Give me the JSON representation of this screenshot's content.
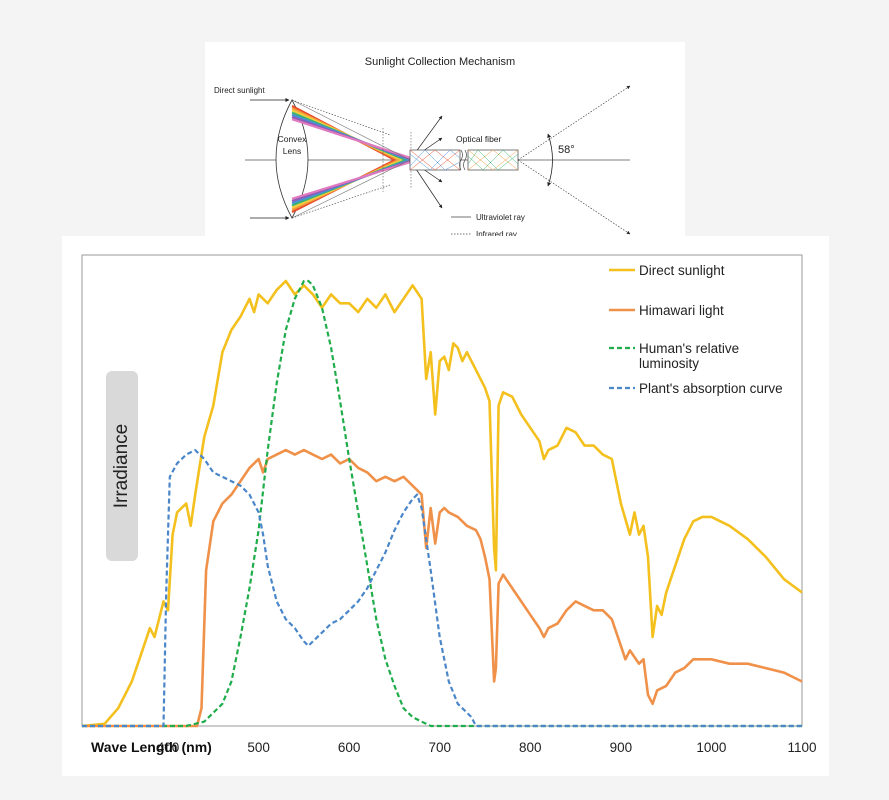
{
  "diagram": {
    "title": "Sunlight Collection Mechanism",
    "direct_sunlight": "Direct sunlight",
    "lens_line1": "Convex",
    "lens_line2": "Lens",
    "optical_fiber": "Optical fiber",
    "angle": "58°",
    "legend": [
      {
        "label": "Ultraviolet ray",
        "style": "solid"
      },
      {
        "label": "Infrared ray",
        "style": "dotted"
      }
    ],
    "spectrum_colors": [
      "#e84b2a",
      "#f39c3d",
      "#f4d03f",
      "#3cb371",
      "#4a90d9",
      "#8e5bb5",
      "#e07ac0"
    ]
  },
  "chart_data": {
    "type": "line",
    "xlabel": "Wave Length (nm)",
    "ylabel": "Irradiance",
    "xlim": [
      305,
      1100
    ],
    "ylim": [
      0,
      1
    ],
    "x_ticks": [
      400,
      500,
      600,
      700,
      800,
      900,
      1000,
      1100
    ],
    "grid": false,
    "legend_position": "top-right",
    "series": [
      {
        "name": "Direct sunlight",
        "color": "#f4c01e",
        "style": "solid",
        "points": [
          [
            300,
            0
          ],
          [
            330,
            0.005
          ],
          [
            345,
            0.04
          ],
          [
            360,
            0.1
          ],
          [
            370,
            0.16
          ],
          [
            380,
            0.22
          ],
          [
            385,
            0.2
          ],
          [
            390,
            0.24
          ],
          [
            395,
            0.28
          ],
          [
            400,
            0.26
          ],
          [
            405,
            0.43
          ],
          [
            410,
            0.48
          ],
          [
            420,
            0.5
          ],
          [
            425,
            0.45
          ],
          [
            430,
            0.52
          ],
          [
            440,
            0.65
          ],
          [
            450,
            0.72
          ],
          [
            460,
            0.84
          ],
          [
            470,
            0.89
          ],
          [
            480,
            0.92
          ],
          [
            490,
            0.96
          ],
          [
            495,
            0.93
          ],
          [
            500,
            0.97
          ],
          [
            510,
            0.95
          ],
          [
            520,
            0.98
          ],
          [
            530,
            1.0
          ],
          [
            540,
            0.97
          ],
          [
            550,
            0.99
          ],
          [
            560,
            0.97
          ],
          [
            570,
            0.94
          ],
          [
            580,
            0.97
          ],
          [
            590,
            0.95
          ],
          [
            600,
            0.95
          ],
          [
            610,
            0.93
          ],
          [
            620,
            0.96
          ],
          [
            630,
            0.94
          ],
          [
            640,
            0.97
          ],
          [
            650,
            0.93
          ],
          [
            660,
            0.96
          ],
          [
            670,
            0.99
          ],
          [
            680,
            0.96
          ],
          [
            685,
            0.78
          ],
          [
            690,
            0.84
          ],
          [
            695,
            0.7
          ],
          [
            700,
            0.82
          ],
          [
            705,
            0.83
          ],
          [
            710,
            0.8
          ],
          [
            715,
            0.86
          ],
          [
            720,
            0.85
          ],
          [
            725,
            0.82
          ],
          [
            730,
            0.84
          ],
          [
            735,
            0.82
          ],
          [
            740,
            0.8
          ],
          [
            745,
            0.78
          ],
          [
            750,
            0.76
          ],
          [
            755,
            0.73
          ],
          [
            760,
            0.4
          ],
          [
            762,
            0.35
          ],
          [
            765,
            0.72
          ],
          [
            770,
            0.75
          ],
          [
            780,
            0.74
          ],
          [
            790,
            0.7
          ],
          [
            800,
            0.67
          ],
          [
            810,
            0.64
          ],
          [
            815,
            0.6
          ],
          [
            820,
            0.62
          ],
          [
            830,
            0.63
          ],
          [
            840,
            0.67
          ],
          [
            850,
            0.66
          ],
          [
            860,
            0.63
          ],
          [
            870,
            0.63
          ],
          [
            880,
            0.61
          ],
          [
            890,
            0.6
          ],
          [
            900,
            0.5
          ],
          [
            910,
            0.43
          ],
          [
            915,
            0.48
          ],
          [
            920,
            0.43
          ],
          [
            925,
            0.45
          ],
          [
            930,
            0.38
          ],
          [
            935,
            0.2
          ],
          [
            940,
            0.27
          ],
          [
            945,
            0.25
          ],
          [
            950,
            0.3
          ],
          [
            960,
            0.36
          ],
          [
            970,
            0.42
          ],
          [
            980,
            0.46
          ],
          [
            990,
            0.47
          ],
          [
            1000,
            0.47
          ],
          [
            1020,
            0.45
          ],
          [
            1040,
            0.42
          ],
          [
            1060,
            0.38
          ],
          [
            1080,
            0.33
          ],
          [
            1100,
            0.3
          ]
        ]
      },
      {
        "name": "Himawari light",
        "color": "#f0914a",
        "style": "solid",
        "points": [
          [
            300,
            0
          ],
          [
            432,
            0
          ],
          [
            437,
            0.04
          ],
          [
            442,
            0.35
          ],
          [
            450,
            0.46
          ],
          [
            460,
            0.5
          ],
          [
            470,
            0.52
          ],
          [
            480,
            0.55
          ],
          [
            490,
            0.58
          ],
          [
            500,
            0.6
          ],
          [
            505,
            0.57
          ],
          [
            510,
            0.6
          ],
          [
            520,
            0.61
          ],
          [
            530,
            0.62
          ],
          [
            540,
            0.61
          ],
          [
            550,
            0.62
          ],
          [
            560,
            0.61
          ],
          [
            570,
            0.6
          ],
          [
            580,
            0.61
          ],
          [
            590,
            0.59
          ],
          [
            600,
            0.6
          ],
          [
            610,
            0.58
          ],
          [
            620,
            0.57
          ],
          [
            630,
            0.55
          ],
          [
            640,
            0.56
          ],
          [
            650,
            0.55
          ],
          [
            660,
            0.56
          ],
          [
            670,
            0.54
          ],
          [
            680,
            0.52
          ],
          [
            685,
            0.4
          ],
          [
            690,
            0.49
          ],
          [
            695,
            0.41
          ],
          [
            700,
            0.48
          ],
          [
            705,
            0.49
          ],
          [
            710,
            0.48
          ],
          [
            720,
            0.47
          ],
          [
            730,
            0.45
          ],
          [
            740,
            0.44
          ],
          [
            745,
            0.42
          ],
          [
            750,
            0.38
          ],
          [
            755,
            0.33
          ],
          [
            760,
            0.1
          ],
          [
            762,
            0.13
          ],
          [
            765,
            0.32
          ],
          [
            770,
            0.34
          ],
          [
            780,
            0.31
          ],
          [
            790,
            0.28
          ],
          [
            800,
            0.25
          ],
          [
            810,
            0.22
          ],
          [
            815,
            0.2
          ],
          [
            820,
            0.22
          ],
          [
            830,
            0.23
          ],
          [
            840,
            0.26
          ],
          [
            850,
            0.28
          ],
          [
            860,
            0.27
          ],
          [
            870,
            0.26
          ],
          [
            880,
            0.26
          ],
          [
            890,
            0.24
          ],
          [
            900,
            0.18
          ],
          [
            905,
            0.15
          ],
          [
            910,
            0.17
          ],
          [
            920,
            0.14
          ],
          [
            925,
            0.15
          ],
          [
            930,
            0.07
          ],
          [
            935,
            0.05
          ],
          [
            940,
            0.08
          ],
          [
            950,
            0.09
          ],
          [
            960,
            0.12
          ],
          [
            970,
            0.13
          ],
          [
            980,
            0.15
          ],
          [
            990,
            0.15
          ],
          [
            1000,
            0.15
          ],
          [
            1020,
            0.14
          ],
          [
            1040,
            0.14
          ],
          [
            1060,
            0.13
          ],
          [
            1080,
            0.12
          ],
          [
            1100,
            0.1
          ]
        ]
      },
      {
        "name": "Human's relative luminosity",
        "color": "#1fad4b",
        "style": "dashed",
        "points": [
          [
            300,
            0
          ],
          [
            420,
            0
          ],
          [
            440,
            0.01
          ],
          [
            460,
            0.05
          ],
          [
            470,
            0.1
          ],
          [
            480,
            0.2
          ],
          [
            490,
            0.31
          ],
          [
            500,
            0.44
          ],
          [
            510,
            0.62
          ],
          [
            520,
            0.77
          ],
          [
            530,
            0.89
          ],
          [
            540,
            0.96
          ],
          [
            550,
            1.0
          ],
          [
            555,
            1.0
          ],
          [
            560,
            0.99
          ],
          [
            570,
            0.94
          ],
          [
            580,
            0.85
          ],
          [
            590,
            0.73
          ],
          [
            600,
            0.6
          ],
          [
            610,
            0.48
          ],
          [
            620,
            0.36
          ],
          [
            630,
            0.24
          ],
          [
            640,
            0.15
          ],
          [
            650,
            0.09
          ],
          [
            660,
            0.04
          ],
          [
            670,
            0.02
          ],
          [
            680,
            0.01
          ],
          [
            690,
            0
          ],
          [
            1100,
            0
          ]
        ]
      },
      {
        "name": "Plant's absorption curve",
        "color": "#4a86c8",
        "style": "dashed",
        "points": [
          [
            300,
            0
          ],
          [
            395,
            0
          ],
          [
            398,
            0.3
          ],
          [
            402,
            0.56
          ],
          [
            410,
            0.59
          ],
          [
            420,
            0.61
          ],
          [
            430,
            0.62
          ],
          [
            440,
            0.6
          ],
          [
            450,
            0.57
          ],
          [
            460,
            0.56
          ],
          [
            470,
            0.55
          ],
          [
            480,
            0.54
          ],
          [
            490,
            0.52
          ],
          [
            500,
            0.48
          ],
          [
            505,
            0.43
          ],
          [
            510,
            0.36
          ],
          [
            520,
            0.28
          ],
          [
            530,
            0.24
          ],
          [
            540,
            0.22
          ],
          [
            550,
            0.19
          ],
          [
            555,
            0.18
          ],
          [
            560,
            0.19
          ],
          [
            570,
            0.21
          ],
          [
            580,
            0.23
          ],
          [
            590,
            0.24
          ],
          [
            600,
            0.26
          ],
          [
            610,
            0.28
          ],
          [
            620,
            0.31
          ],
          [
            630,
            0.35
          ],
          [
            640,
            0.39
          ],
          [
            650,
            0.44
          ],
          [
            660,
            0.48
          ],
          [
            670,
            0.51
          ],
          [
            675,
            0.52
          ],
          [
            680,
            0.49
          ],
          [
            690,
            0.35
          ],
          [
            700,
            0.2
          ],
          [
            710,
            0.1
          ],
          [
            720,
            0.05
          ],
          [
            730,
            0.03
          ],
          [
            735,
            0.02
          ],
          [
            740,
            0
          ],
          [
            1100,
            0
          ]
        ]
      }
    ]
  }
}
